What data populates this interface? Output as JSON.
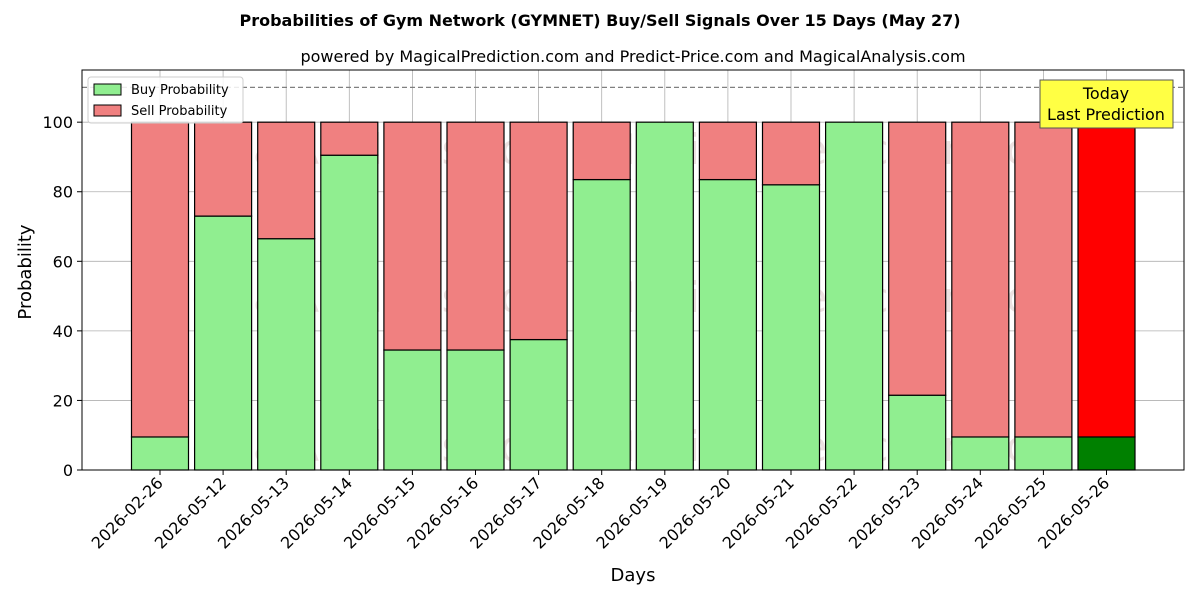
{
  "chart_data": {
    "type": "bar",
    "stacked": true,
    "title": "Probabilities of Gym Network (GYMNET) Buy/Sell Signals Over 15 Days (May 27)",
    "subtitle": "powered by MagicalPrediction.com and Predict-Price.com and MagicalAnalysis.com",
    "xlabel": "Days",
    "ylabel": "Probability",
    "ylim": [
      0,
      115
    ],
    "yticks": [
      0,
      20,
      40,
      60,
      80,
      100
    ],
    "reference_line": 110,
    "grid": true,
    "legend_position": "top-left",
    "categories": [
      "2026-02-26",
      "2026-05-12",
      "2026-05-13",
      "2026-05-14",
      "2026-05-15",
      "2026-05-16",
      "2026-05-17",
      "2026-05-18",
      "2026-05-19",
      "2026-05-20",
      "2026-05-21",
      "2026-05-22",
      "2026-05-23",
      "2026-05-24",
      "2026-05-25",
      "2026-05-26"
    ],
    "series": [
      {
        "name": "Buy Probability",
        "color": "#90ee90",
        "values": [
          9.5,
          73,
          66.5,
          90.5,
          34.5,
          34.5,
          37.5,
          83.5,
          100,
          83.5,
          82,
          100,
          21.5,
          9.5,
          9.5,
          9.5
        ]
      },
      {
        "name": "Sell Probability",
        "color": "#f08080",
        "values": [
          90.5,
          27,
          33.5,
          9.5,
          65.5,
          65.5,
          62.5,
          16.5,
          0,
          16.5,
          18,
          0,
          78.5,
          90.5,
          90.5,
          90.5
        ]
      }
    ],
    "highlight": {
      "index": 15,
      "buy_color": "#008000",
      "sell_color": "#ff0000"
    },
    "annotation": {
      "line1": "Today",
      "line2": "Last Prediction",
      "color": "#ffff44"
    },
    "watermarks": [
      "MagicalAnalysis.com",
      "MagicalPrediction.com"
    ]
  }
}
